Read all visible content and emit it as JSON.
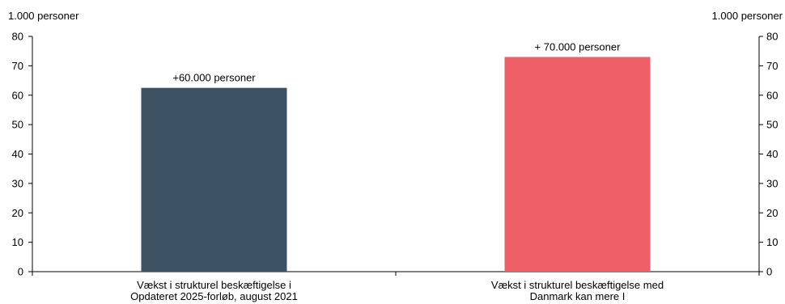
{
  "chart_data": {
    "type": "bar",
    "categories": [
      [
        "Vækst i strukturel beskæftigelse i",
        "Opdateret 2025-forløb, august 2021"
      ],
      [
        "Vækst i strukturel beskæftigelse med",
        "Danmark kan mere I"
      ]
    ],
    "values": [
      62.5,
      73
    ],
    "data_labels": [
      "+60.000 personer",
      "+ 70.000 personer"
    ],
    "colors": [
      "#3d5364",
      "#ef5f67"
    ],
    "y_axis_title_left": "1.000 personer",
    "y_axis_title_right": "1.000 personer",
    "yticks": [
      "0",
      "10",
      "20",
      "30",
      "40",
      "50",
      "60",
      "70",
      "80"
    ],
    "ylim": [
      0,
      80
    ],
    "grid": false,
    "legend": "none"
  }
}
